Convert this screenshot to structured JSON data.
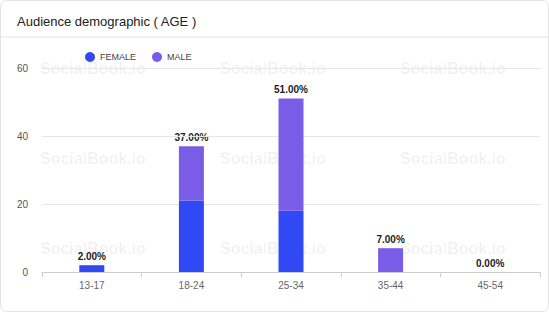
{
  "chart_data": {
    "type": "bar",
    "title": "Audience demographic ( AGE )",
    "watermark": "SocialBook.io",
    "categories": [
      "13-17",
      "18-24",
      "25-34",
      "35-44",
      "45-54"
    ],
    "series": [
      {
        "name": "FEMALE",
        "color": "#3049f5",
        "values": [
          2,
          21,
          18,
          0,
          0
        ]
      },
      {
        "name": "MALE",
        "color": "#7b5ce8",
        "values": [
          0,
          16,
          33,
          7,
          0
        ]
      }
    ],
    "totals": [
      2,
      37,
      51,
      7,
      0
    ],
    "total_labels": [
      "2.00%",
      "37.00%",
      "51.00%",
      "7.00%",
      "0.00%"
    ],
    "stacked": true,
    "ylim": [
      0,
      60
    ],
    "yticks": [
      0,
      20,
      40,
      60
    ],
    "grid": true,
    "legend": "top-left"
  }
}
